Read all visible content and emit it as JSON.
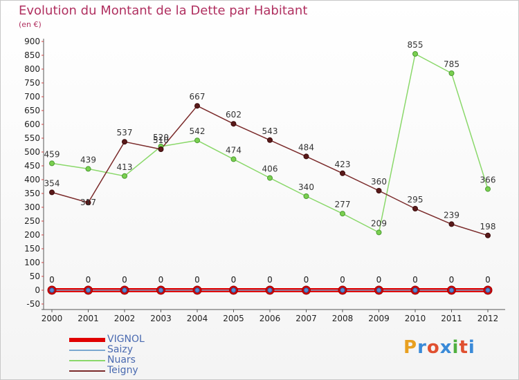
{
  "header": {
    "title": "Evolution du Montant de la Dette par Habitant",
    "subtitle": "(en €)"
  },
  "logo": {
    "text": "Proxiti",
    "colors": [
      "#e8a020",
      "#3a8ad8",
      "#e05030",
      "#3a8ad8",
      "#50b040",
      "#e05030",
      "#3a8ad8"
    ]
  },
  "chart_data": {
    "type": "line",
    "title": "Evolution du Montant de la Dette par Habitant",
    "subtitle": "(en €)",
    "x": [
      "2000",
      "2001",
      "2002",
      "2003",
      "2004",
      "2005",
      "2006",
      "2007",
      "2008",
      "2009",
      "2010",
      "2011",
      "2012"
    ],
    "ylim": [
      -50,
      900
    ],
    "yticks": [
      -50,
      0,
      50,
      100,
      150,
      200,
      250,
      300,
      350,
      400,
      450,
      500,
      550,
      600,
      650,
      700,
      750,
      800,
      850,
      900
    ],
    "grid": false,
    "legend_position": "bottom-left",
    "series": [
      {
        "name": "VIGNOL",
        "color": "#e00000",
        "values": [
          0,
          0,
          0,
          0,
          0,
          0,
          0,
          0,
          0,
          0,
          0,
          0,
          0
        ]
      },
      {
        "name": "Saizy",
        "color": "#7aa8d0",
        "values": [
          0,
          0,
          0,
          0,
          0,
          0,
          0,
          0,
          0,
          0,
          0,
          0,
          0
        ]
      },
      {
        "name": "Nuars",
        "color": "#8ad86a",
        "values": [
          459,
          439,
          413,
          520,
          542,
          474,
          406,
          340,
          277,
          209,
          855,
          785,
          366
        ]
      },
      {
        "name": "Teigny",
        "color": "#7a2a2a",
        "values": [
          354,
          317,
          537,
          510,
          667,
          602,
          543,
          484,
          423,
          360,
          295,
          239,
          198
        ]
      }
    ]
  }
}
